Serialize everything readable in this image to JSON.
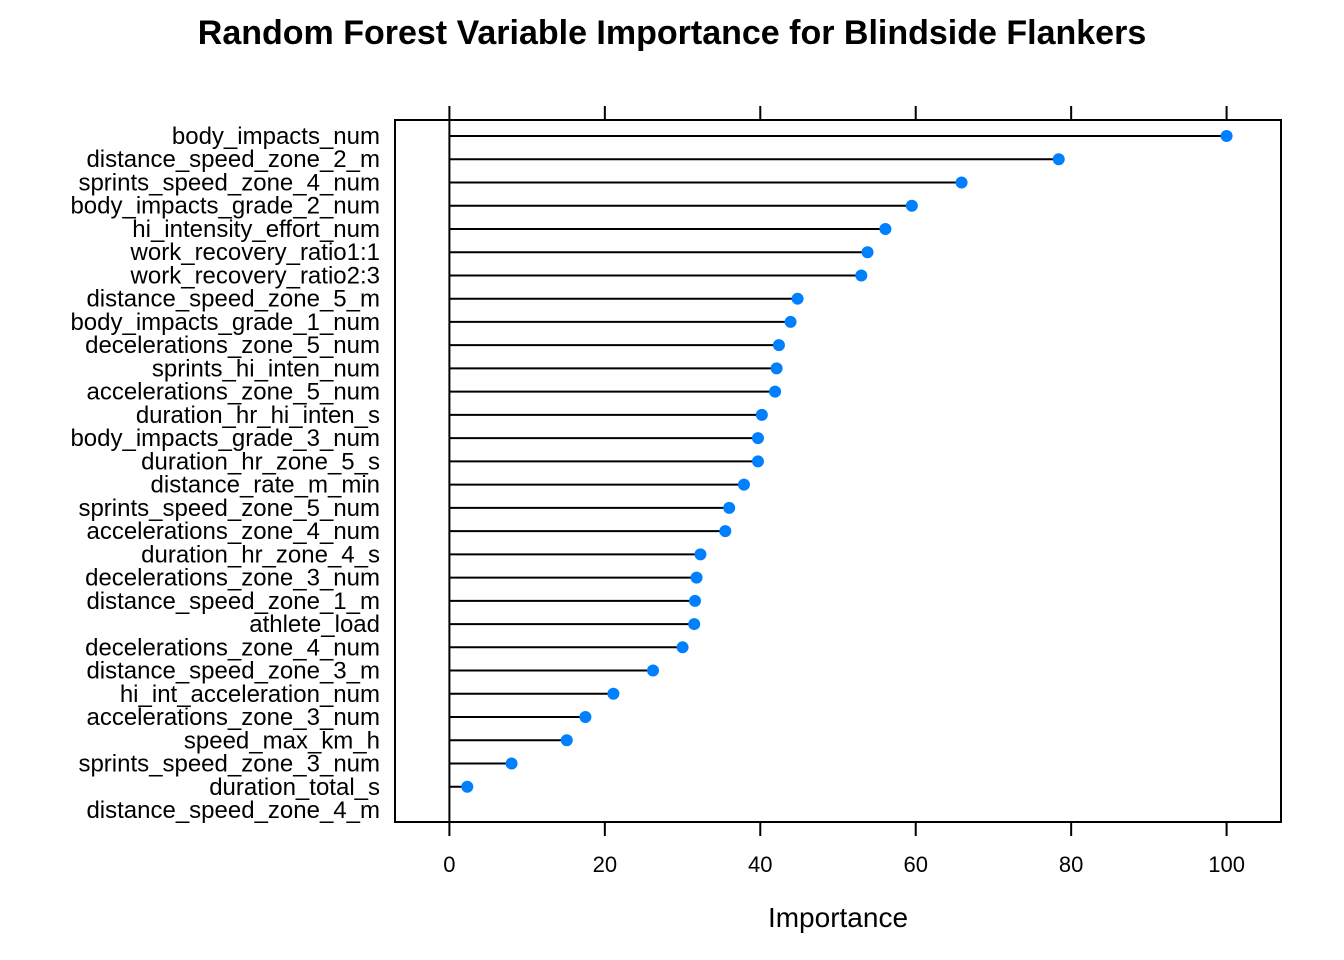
{
  "chart_data": {
    "type": "lollipop",
    "title": "Random Forest Variable Importance for Blindside Flankers",
    "xlabel": "Importance",
    "ylabel": "",
    "xlim": [
      -7,
      107
    ],
    "xticks": [
      "0",
      "20",
      "40",
      "60",
      "80",
      "100"
    ],
    "xtick_values": [
      0,
      20,
      40,
      60,
      80,
      100
    ],
    "point_color": "#0080FF",
    "stem_color": "#000000",
    "categories": [
      "body_impacts_num",
      "distance_speed_zone_2_m",
      "sprints_speed_zone_4_num",
      "body_impacts_grade_2_num",
      "hi_intensity_effort_num",
      "work_recovery_ratio1:1",
      "work_recovery_ratio2:3",
      "distance_speed_zone_5_m",
      "body_impacts_grade_1_num",
      "decelerations_zone_5_num",
      "sprints_hi_inten_num",
      "accelerations_zone_5_num",
      "duration_hr_hi_inten_s",
      "body_impacts_grade_3_num",
      "duration_hr_zone_5_s",
      "distance_rate_m_min",
      "sprints_speed_zone_5_num",
      "accelerations_zone_4_num",
      "duration_hr_zone_4_s",
      "decelerations_zone_3_num",
      "distance_speed_zone_1_m",
      "athlete_load",
      "decelerations_zone_4_num",
      "distance_speed_zone_3_m",
      "hi_int_acceleration_num",
      "accelerations_zone_3_num",
      "speed_max_km_h",
      "sprints_speed_zone_3_num",
      "duration_total_s",
      "distance_speed_zone_4_m"
    ],
    "values": [
      100,
      78.4,
      65.9,
      59.5,
      56.1,
      53.8,
      53.0,
      44.8,
      43.9,
      42.4,
      42.1,
      41.9,
      40.2,
      39.7,
      39.7,
      37.9,
      36.0,
      35.5,
      32.3,
      31.8,
      31.6,
      31.5,
      30.0,
      26.2,
      21.1,
      17.5,
      15.1,
      8.0,
      2.3,
      0
    ]
  }
}
